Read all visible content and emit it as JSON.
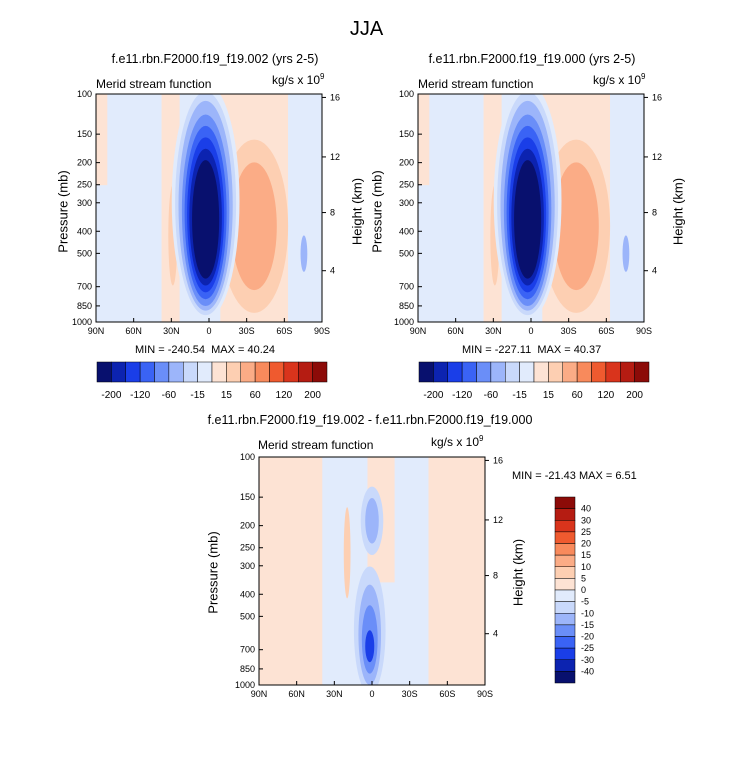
{
  "page": {
    "title": "JJA"
  },
  "units_label": "kg/s x 10",
  "units_exponent": "9",
  "colors": {
    "neg": [
      "#08106e",
      "#0c23b0",
      "#1a3ee8",
      "#3a63f5",
      "#6a8ef8",
      "#9cb5fa",
      "#c9d9fb",
      "#e1ebfc"
    ],
    "pos": [
      "#fde3d4",
      "#fdcfb2",
      "#fbac86",
      "#f88a5c",
      "#ef5a2f",
      "#d9341c",
      "#b51c12",
      "#8c0b08"
    ],
    "white": "#ffffff"
  },
  "chart_data": [
    {
      "type": "contour",
      "title": "f.e11.rbn.F2000.f19_f19.002 (yrs 2-5)",
      "left_string": "Merid stream function",
      "ylabel": "Pressure (mb)",
      "ylabel_right": "Height (km)",
      "xticks": [
        "90N",
        "60N",
        "30N",
        "0",
        "30S",
        "60S",
        "90S"
      ],
      "pressure_ticks": [
        "100",
        "150",
        "200",
        "250",
        "300",
        "400",
        "500",
        "700",
        "850",
        "1000"
      ],
      "height_ticks": [
        "16",
        "12",
        "8",
        "4"
      ],
      "min_label": "MIN = -240.54",
      "max_label": "MAX =  40.24",
      "levels": [
        "-200",
        "-120",
        "-60",
        "-15",
        "15",
        "60",
        "120",
        "200"
      ],
      "min": -240.54,
      "max": 40.24
    },
    {
      "type": "contour",
      "title": "f.e11.rbn.F2000.f19_f19.000 (yrs 2-5)",
      "left_string": "Merid stream function",
      "ylabel": "Pressure (mb)",
      "ylabel_right": "Height (km)",
      "xticks": [
        "90N",
        "60N",
        "30N",
        "0",
        "30S",
        "60S",
        "90S"
      ],
      "pressure_ticks": [
        "100",
        "150",
        "200",
        "250",
        "300",
        "400",
        "500",
        "700",
        "850",
        "1000"
      ],
      "height_ticks": [
        "16",
        "12",
        "8",
        "4"
      ],
      "min_label": "MIN = -227.11",
      "max_label": "MAX =  40.37",
      "levels": [
        "-200",
        "-120",
        "-60",
        "-15",
        "15",
        "60",
        "120",
        "200"
      ],
      "min": -227.11,
      "max": 40.37
    },
    {
      "type": "contour",
      "title": "f.e11.rbn.F2000.f19_f19.002 - f.e11.rbn.F2000.f19_f19.000",
      "left_string": "Merid stream function",
      "ylabel": "Pressure (mb)",
      "ylabel_right": "Height (km)",
      "xticks": [
        "90N",
        "60N",
        "30N",
        "0",
        "30S",
        "60S",
        "90S"
      ],
      "pressure_ticks": [
        "100",
        "150",
        "200",
        "250",
        "300",
        "400",
        "500",
        "700",
        "850",
        "1000"
      ],
      "height_ticks": [
        "16",
        "12",
        "8",
        "4"
      ],
      "minmax_label": "MIN = -21.43  MAX =   6.51",
      "levels": [
        "40",
        "30",
        "25",
        "20",
        "15",
        "10",
        "5",
        "0",
        "-5",
        "-10",
        "-15",
        "-20",
        "-25",
        "-30",
        "-40"
      ],
      "min": -21.43,
      "max": 6.51
    }
  ]
}
